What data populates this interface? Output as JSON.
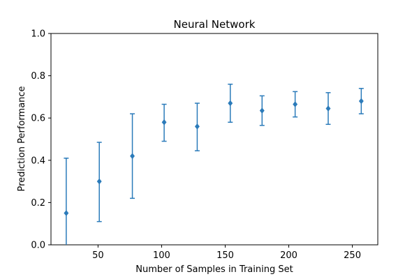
{
  "chart_data": {
    "type": "scatter",
    "title": "Neural Network",
    "xlabel": "Number of Samples in Training Set",
    "ylabel": "Prediction Performance",
    "xlim": [
      13,
      270
    ],
    "ylim": [
      0.0,
      1.0
    ],
    "x_ticks": [
      50,
      100,
      150,
      200,
      250
    ],
    "y_ticks": [
      0.0,
      0.2,
      0.4,
      0.6,
      0.8,
      1.0
    ],
    "y_tick_labels": [
      "0.0",
      "0.2",
      "0.4",
      "0.6",
      "0.8",
      "1.0"
    ],
    "grid": false,
    "marker": "diamond",
    "color": "#2b7bba",
    "series": [
      {
        "x": [
          25,
          51,
          77,
          102,
          128,
          154,
          179,
          205,
          231,
          257
        ],
        "y": [
          0.15,
          0.3,
          0.42,
          0.58,
          0.56,
          0.67,
          0.635,
          0.665,
          0.645,
          0.68
        ],
        "err_low": [
          0.26,
          0.19,
          0.2,
          0.09,
          0.115,
          0.09,
          0.07,
          0.06,
          0.075,
          0.06
        ],
        "err_high": [
          0.26,
          0.185,
          0.2,
          0.085,
          0.11,
          0.09,
          0.07,
          0.06,
          0.075,
          0.06
        ]
      }
    ]
  }
}
